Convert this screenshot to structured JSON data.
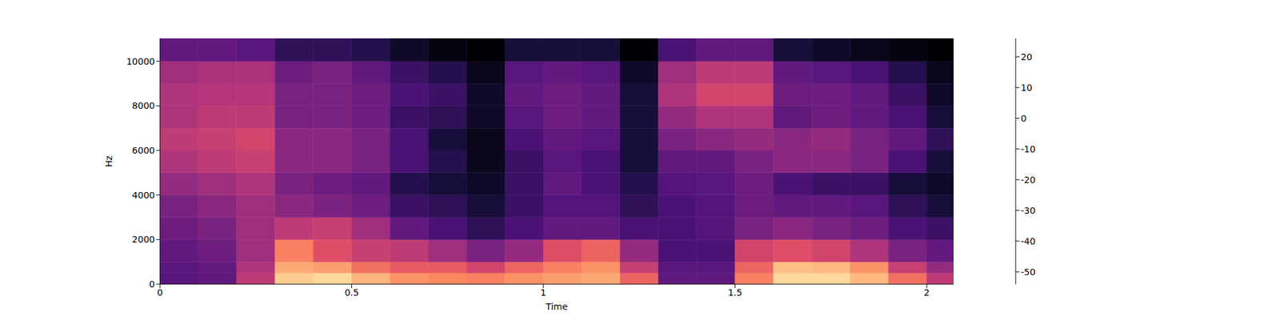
{
  "chart_data": {
    "type": "heatmap",
    "xlabel": "Time",
    "ylabel": "Hz",
    "xlim": [
      0,
      2.07
    ],
    "ylim": [
      0,
      11025
    ],
    "xticks": [
      0,
      0.5,
      1,
      1.5,
      2
    ],
    "yticks": [
      0,
      2000,
      4000,
      6000,
      8000,
      10000
    ],
    "x_edges": [
      0,
      0.1,
      0.2,
      0.3,
      0.4,
      0.5,
      0.6,
      0.7,
      0.8,
      0.9,
      1.0,
      1.1,
      1.2,
      1.3,
      1.4,
      1.5,
      1.6,
      1.7,
      1.8,
      1.9,
      2.0,
      2.07
    ],
    "y_edges": [
      0,
      500,
      1000,
      2000,
      3000,
      4000,
      5000,
      6000,
      7000,
      8000,
      9000,
      10000,
      11025
    ],
    "cells": [
      [
        -32,
        -30,
        -12,
        18,
        20,
        14,
        8,
        6,
        5,
        8,
        10,
        12,
        0,
        -30,
        -30,
        5,
        20,
        20,
        15,
        2,
        -12
      ],
      [
        -32,
        -30,
        -15,
        12,
        10,
        2,
        -2,
        -2,
        -8,
        0,
        5,
        8,
        -10,
        -32,
        -32,
        0,
        16,
        15,
        8,
        -10,
        -20
      ],
      [
        -30,
        -28,
        -18,
        5,
        -5,
        -10,
        -12,
        -18,
        -25,
        -20,
        -5,
        0,
        -20,
        -35,
        -35,
        -8,
        -5,
        -8,
        -15,
        -25,
        -30
      ],
      [
        -28,
        -25,
        -18,
        -12,
        -10,
        -18,
        -30,
        -35,
        -40,
        -35,
        -30,
        -30,
        -35,
        -35,
        -33,
        -25,
        -22,
        -25,
        -28,
        -35,
        -38
      ],
      [
        -25,
        -22,
        -18,
        -22,
        -25,
        -28,
        -38,
        -40,
        -45,
        -38,
        -33,
        -33,
        -40,
        -35,
        -33,
        -28,
        -30,
        -30,
        -32,
        -40,
        -45
      ],
      [
        -20,
        -18,
        -15,
        -25,
        -28,
        -30,
        -42,
        -45,
        -48,
        -38,
        -30,
        -35,
        -42,
        -33,
        -32,
        -28,
        -35,
        -38,
        -38,
        -45,
        -48
      ],
      [
        -15,
        -12,
        -10,
        -22,
        -22,
        -25,
        -35,
        -42,
        -50,
        -38,
        -32,
        -35,
        -45,
        -30,
        -30,
        -25,
        -22,
        -22,
        -25,
        -35,
        -45
      ],
      [
        -12,
        -10,
        -8,
        -22,
        -22,
        -25,
        -35,
        -45,
        -50,
        -35,
        -30,
        -32,
        -45,
        -25,
        -22,
        -20,
        -22,
        -20,
        -25,
        -30,
        -40
      ],
      [
        -15,
        -12,
        -12,
        -25,
        -25,
        -28,
        -38,
        -40,
        -48,
        -32,
        -28,
        -30,
        -45,
        -20,
        -15,
        -15,
        -30,
        -28,
        -30,
        -35,
        -45
      ],
      [
        -15,
        -14,
        -14,
        -25,
        -25,
        -28,
        -35,
        -38,
        -48,
        -30,
        -28,
        -30,
        -45,
        -15,
        -8,
        -8,
        -28,
        -28,
        -30,
        -38,
        -48
      ],
      [
        -18,
        -16,
        -16,
        -28,
        -25,
        -30,
        -38,
        -42,
        -50,
        -32,
        -30,
        -32,
        -48,
        -18,
        -12,
        -12,
        -30,
        -32,
        -35,
        -42,
        -50
      ],
      [
        -30,
        -30,
        -32,
        -40,
        -40,
        -42,
        -48,
        -52,
        -54,
        -45,
        -45,
        -45,
        -54,
        -35,
        -30,
        -30,
        -45,
        -48,
        -50,
        -52,
        -54
      ]
    ],
    "colorbar": {
      "range": [
        -54,
        26
      ],
      "ticks": [
        -50,
        -40,
        -30,
        -20,
        -10,
        0,
        10,
        20
      ]
    }
  }
}
